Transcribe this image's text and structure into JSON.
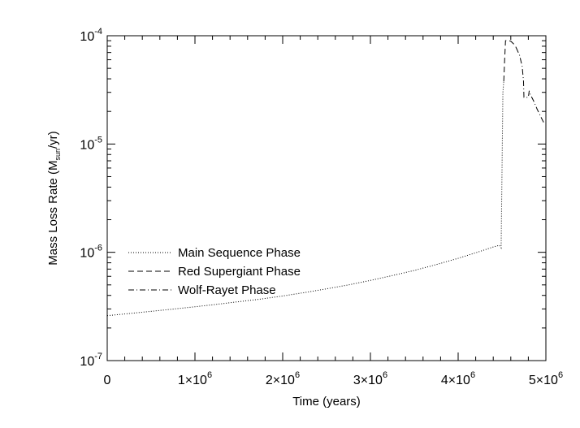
{
  "chart_data": {
    "type": "line",
    "xlabel": "Time (years)",
    "ylabel_main": "Mass Loss Rate (M",
    "ylabel_sub": "sun",
    "ylabel_end": "/yr)",
    "x_scale": "linear",
    "y_scale": "log",
    "xlim": [
      0,
      5000000
    ],
    "ylim": [
      1e-07,
      0.0001
    ],
    "grid": false,
    "legend_position": "lower-left",
    "x_ticks": [
      {
        "value": 0,
        "mantissa": "0",
        "exponent": ""
      },
      {
        "value": 1000000,
        "mantissa": "1×10",
        "exponent": "6"
      },
      {
        "value": 2000000,
        "mantissa": "2×10",
        "exponent": "6"
      },
      {
        "value": 3000000,
        "mantissa": "3×10",
        "exponent": "6"
      },
      {
        "value": 4000000,
        "mantissa": "4×10",
        "exponent": "6"
      },
      {
        "value": 5000000,
        "mantissa": "5×10",
        "exponent": "6"
      }
    ],
    "y_ticks": [
      {
        "value": 1e-07,
        "mantissa": "10",
        "exponent": "-7"
      },
      {
        "value": 1e-06,
        "mantissa": "10",
        "exponent": "-6"
      },
      {
        "value": 1e-05,
        "mantissa": "10",
        "exponent": "-5"
      },
      {
        "value": 0.0001,
        "mantissa": "10",
        "exponent": "-4"
      }
    ],
    "series": [
      {
        "name": "Main Sequence Phase",
        "dash": "dotted",
        "x": [
          0,
          250000,
          500000,
          750000,
          1000000,
          1250000,
          1500000,
          1750000,
          2000000,
          2250000,
          2500000,
          2750000,
          3000000,
          3250000,
          3500000,
          3750000,
          4000000,
          4250000,
          4400000,
          4470000,
          4490000,
          4510000,
          4520000
        ],
        "y": [
          2.6e-07,
          2.72e-07,
          2.85e-07,
          2.99e-07,
          3.14e-07,
          3.31e-07,
          3.5e-07,
          3.7e-07,
          3.95e-07,
          4.25e-07,
          4.6e-07,
          5e-07,
          5.5e-07,
          6.1e-07,
          6.8e-07,
          7.7e-07,
          8.8e-07,
          1.02e-06,
          1.12e-06,
          1.16e-06,
          1.1e-06,
          3e-05,
          3.8e-05
        ]
      },
      {
        "name": "Red Supergiant Phase",
        "dash": "dashed",
        "x": [
          4520000,
          4530000,
          4540000,
          4560000,
          4600000,
          4640000,
          4660000
        ],
        "y": [
          3.8e-05,
          6e-05,
          9e-05,
          9.1e-05,
          8.9e-05,
          8.3e-05,
          7.8e-05
        ]
      },
      {
        "name": "Wolf-Rayet Phase",
        "dash": "dashdot",
        "x": [
          4660000,
          4700000,
          4730000,
          4745000,
          4750000,
          4800000,
          4810000,
          4820000,
          4860000,
          4900000,
          4940000,
          4980000
        ],
        "y": [
          7.8e-05,
          6.6e-05,
          5.2e-05,
          3.8e-05,
          2.7e-05,
          2.7e-05,
          3.1e-05,
          2.9e-05,
          2.5e-05,
          2.1e-05,
          1.8e-05,
          1.55e-05
        ]
      }
    ]
  }
}
